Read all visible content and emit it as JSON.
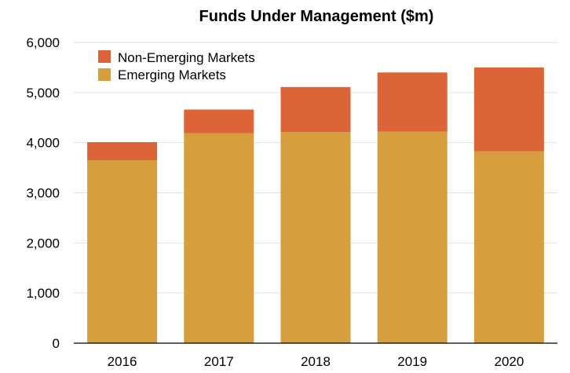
{
  "chart_data": {
    "type": "bar",
    "stacked": true,
    "title": "Funds Under Management ($m)",
    "xlabel": "",
    "ylabel": "",
    "categories": [
      "2016",
      "2017",
      "2018",
      "2019",
      "2020"
    ],
    "series": [
      {
        "name": "Emerging Markets",
        "color": "#D69E3C",
        "values": [
          3650,
          4190,
          4210,
          4220,
          3830
        ]
      },
      {
        "name": "Non-Emerging Markets",
        "color": "#DB6538",
        "values": [
          360,
          470,
          900,
          1180,
          1670
        ]
      }
    ],
    "ylim": [
      0,
      6000
    ],
    "yticks": [
      0,
      1000,
      2000,
      3000,
      4000,
      5000,
      6000
    ],
    "ytick_labels": [
      "0",
      "1,000",
      "2,000",
      "3,000",
      "4,000",
      "5,000",
      "6,000"
    ],
    "grid": true,
    "legend": {
      "position": "top-left",
      "entries": [
        "Non-Emerging Markets",
        "Emerging Markets"
      ]
    }
  }
}
